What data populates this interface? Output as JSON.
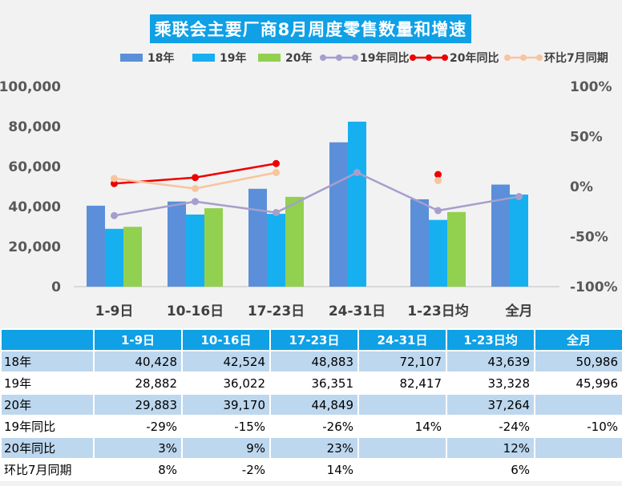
{
  "title": "乘联会主要厂商8月周度零售数量和增速",
  "chart_data": {
    "type": "bar",
    "categories": [
      "1-9日",
      "10-16日",
      "17-23日",
      "24-31日",
      "1-23日均",
      "全月"
    ],
    "y_left": {
      "min": 0,
      "max": 100000,
      "ticks": [
        "0",
        "20,000",
        "40,000",
        "60,000",
        "80,000",
        "100,000"
      ]
    },
    "y_right": {
      "min": -100,
      "max": 100,
      "ticks": [
        "-100%",
        "-50%",
        "0%",
        "50%",
        "100%"
      ]
    },
    "bar_series": [
      {
        "name": "18年",
        "color": "#5b8fd9",
        "values": [
          40428,
          42524,
          48883,
          72107,
          43639,
          50986
        ]
      },
      {
        "name": "19年",
        "color": "#16b0f0",
        "values": [
          28882,
          36022,
          36351,
          82417,
          33328,
          45996
        ]
      },
      {
        "name": "20年",
        "color": "#92d050",
        "values": [
          29883,
          39170,
          44849,
          null,
          37264,
          null
        ]
      }
    ],
    "line_series": [
      {
        "name": "19年同比",
        "color": "#a79ecd",
        "values": [
          -29,
          -15,
          -26,
          14,
          -24,
          -10
        ],
        "breaks": []
      },
      {
        "name": "20年同比",
        "color": "#ee0000",
        "values": [
          3,
          9,
          23,
          null,
          12,
          null
        ],
        "breaks": []
      },
      {
        "name": "环比7月同期",
        "color": "#f8c49e",
        "values": [
          8,
          -2,
          14,
          null,
          6,
          null
        ],
        "breaks": []
      }
    ],
    "grid": false,
    "legend": "top"
  },
  "table": {
    "headers": [
      "",
      "1-9日",
      "10-16日",
      "17-23日",
      "24-31日",
      "1-23日均",
      "全月"
    ],
    "rows": [
      {
        "label": "18年",
        "cells": [
          "40,428",
          "42,524",
          "48,883",
          "72,107",
          "43,639",
          "50,986"
        ]
      },
      {
        "label": "19年",
        "cells": [
          "28,882",
          "36,022",
          "36,351",
          "82,417",
          "33,328",
          "45,996"
        ]
      },
      {
        "label": "20年",
        "cells": [
          "29,883",
          "39,170",
          "44,849",
          "",
          "37,264",
          ""
        ]
      },
      {
        "label": "19年同比",
        "cells": [
          "-29%",
          "-15%",
          "-26%",
          "14%",
          "-24%",
          "-10%"
        ]
      },
      {
        "label": "20年同比",
        "cells": [
          "3%",
          "9%",
          "23%",
          "",
          "12%",
          ""
        ]
      },
      {
        "label": "环比7月同期",
        "cells": [
          "8%",
          "-2%",
          "14%",
          "",
          "6%",
          ""
        ]
      }
    ]
  }
}
